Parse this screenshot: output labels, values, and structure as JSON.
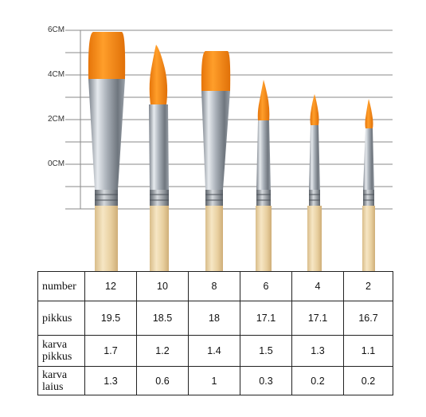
{
  "scale": {
    "labels": [
      "6CM",
      "4CM",
      "2CM",
      "0CM"
    ]
  },
  "brushes": [
    {
      "size_label": "12",
      "tip": "flat"
    },
    {
      "size_label": "10",
      "tip": "round"
    },
    {
      "size_label": "8",
      "tip": "flat"
    },
    {
      "size_label": "6",
      "tip": "round"
    },
    {
      "size_label": "4",
      "tip": "round"
    },
    {
      "size_label": "2",
      "tip": "round"
    }
  ],
  "table": {
    "rows": [
      {
        "header": "number",
        "values": [
          "12",
          "10",
          "8",
          "6",
          "4",
          "2"
        ]
      },
      {
        "header": "pikkus",
        "values": [
          "19.5",
          "18.5",
          "18",
          "17.1",
          "17.1",
          "16.7"
        ]
      },
      {
        "header": "karva pikkus",
        "values": [
          "1.7",
          "1.2",
          "1.4",
          "1.5",
          "1.3",
          "1.1"
        ]
      },
      {
        "header": "karva laius",
        "values": [
          "1.3",
          "0.6",
          "1",
          "0.3",
          "0.2",
          "0.2"
        ]
      }
    ]
  },
  "colors": {
    "bristle": "#f08a10",
    "bristle_dark": "#d96f05",
    "handle": "#ecd5a8",
    "ferrule": "#b8bec6",
    "grid": "#8a8a8a"
  }
}
